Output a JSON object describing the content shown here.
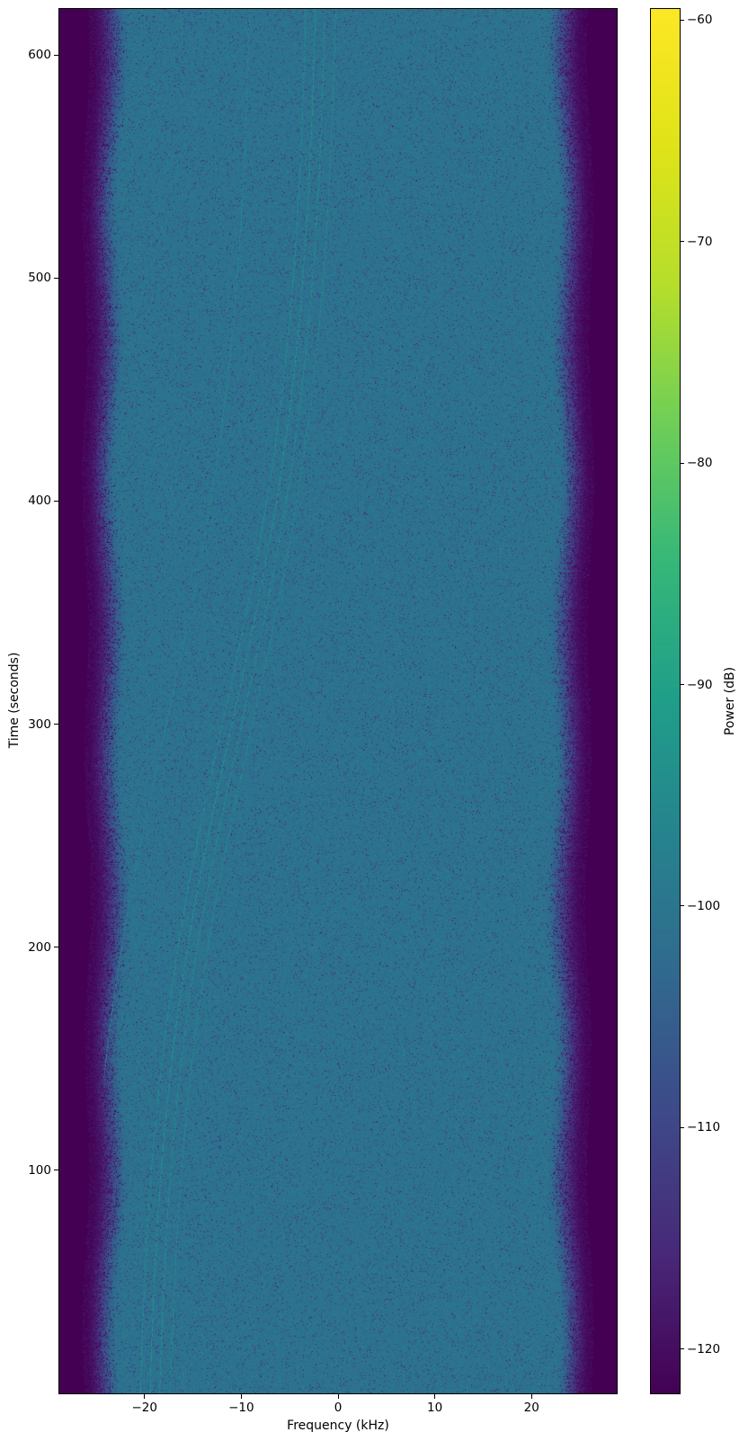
{
  "chart_data": {
    "type": "heatmap",
    "title": "",
    "xlabel": "Frequency (kHz)",
    "ylabel": "Time (seconds)",
    "colorbar_label": "Power (dB)",
    "xlim": [
      -28.8,
      28.8
    ],
    "ylim": [
      0,
      620.6
    ],
    "clim": [
      -122,
      -59.5
    ],
    "grid": false,
    "x_ticks": {
      "values": [
        -20,
        -10,
        0,
        10,
        20
      ],
      "labels": [
        "−20",
        "−10",
        "0",
        "10",
        "20"
      ]
    },
    "y_ticks": {
      "values": [
        600,
        500,
        400,
        300,
        200,
        100
      ],
      "labels": [
        "600",
        "500",
        "400",
        "300",
        "200",
        "100"
      ]
    },
    "colorbar_ticks": {
      "values": [
        -60,
        -70,
        -80,
        -90,
        -100,
        -110,
        -120
      ],
      "labels": [
        "−60",
        "−70",
        "−80",
        "−90",
        "−100",
        "−110",
        "−120"
      ]
    },
    "colormap": {
      "name": "viridis",
      "anchors": [
        {
          "pos": 0.0,
          "hex": "#440154"
        },
        {
          "pos": 0.1,
          "hex": "#482878"
        },
        {
          "pos": 0.2,
          "hex": "#3e4989"
        },
        {
          "pos": 0.3,
          "hex": "#31688e"
        },
        {
          "pos": 0.4,
          "hex": "#26828e"
        },
        {
          "pos": 0.5,
          "hex": "#1f9e89"
        },
        {
          "pos": 0.6,
          "hex": "#35b779"
        },
        {
          "pos": 0.7,
          "hex": "#6ece58"
        },
        {
          "pos": 0.8,
          "hex": "#b5de2b"
        },
        {
          "pos": 0.9,
          "hex": "#dfe318"
        },
        {
          "pos": 1.0,
          "hex": "#fde725"
        }
      ]
    },
    "spectrogram": {
      "description": "Wideband noise-floor spectrogram of a recording: flat noise floor near -101 dB across roughly ±22 kHz, rolling off into a dark out-of-band region beyond about ±26 kHz; several faint Doppler-shifted carrier traces curve from about -20 kHz at t=0 to about -2.5 kHz at t=620 s.",
      "noise_floor_db": -100.8,
      "noise_sigma_db": 2.7,
      "passband_khz": 21.8,
      "stopband_khz": 26.4,
      "out_of_band_db": -124,
      "doppler": {
        "model": "f(t) = f_mid + amplitude * tanh((t - t_mid)/tau) + offset",
        "f_mid_khz": -10.95,
        "amplitude_khz": 9.1,
        "t_mid_s": 300,
        "tau_s": 180,
        "trace_level_db": -93,
        "traces": [
          {
            "offset_khz": -6.8,
            "intensity": 0.3
          },
          {
            "offset_khz": -1.0,
            "intensity": 0.55
          },
          {
            "offset_khz": 0.0,
            "intensity": 0.75
          },
          {
            "offset_khz": 1.0,
            "intensity": 0.5
          },
          {
            "offset_khz": 2.1,
            "intensity": 0.4
          }
        ]
      }
    }
  }
}
